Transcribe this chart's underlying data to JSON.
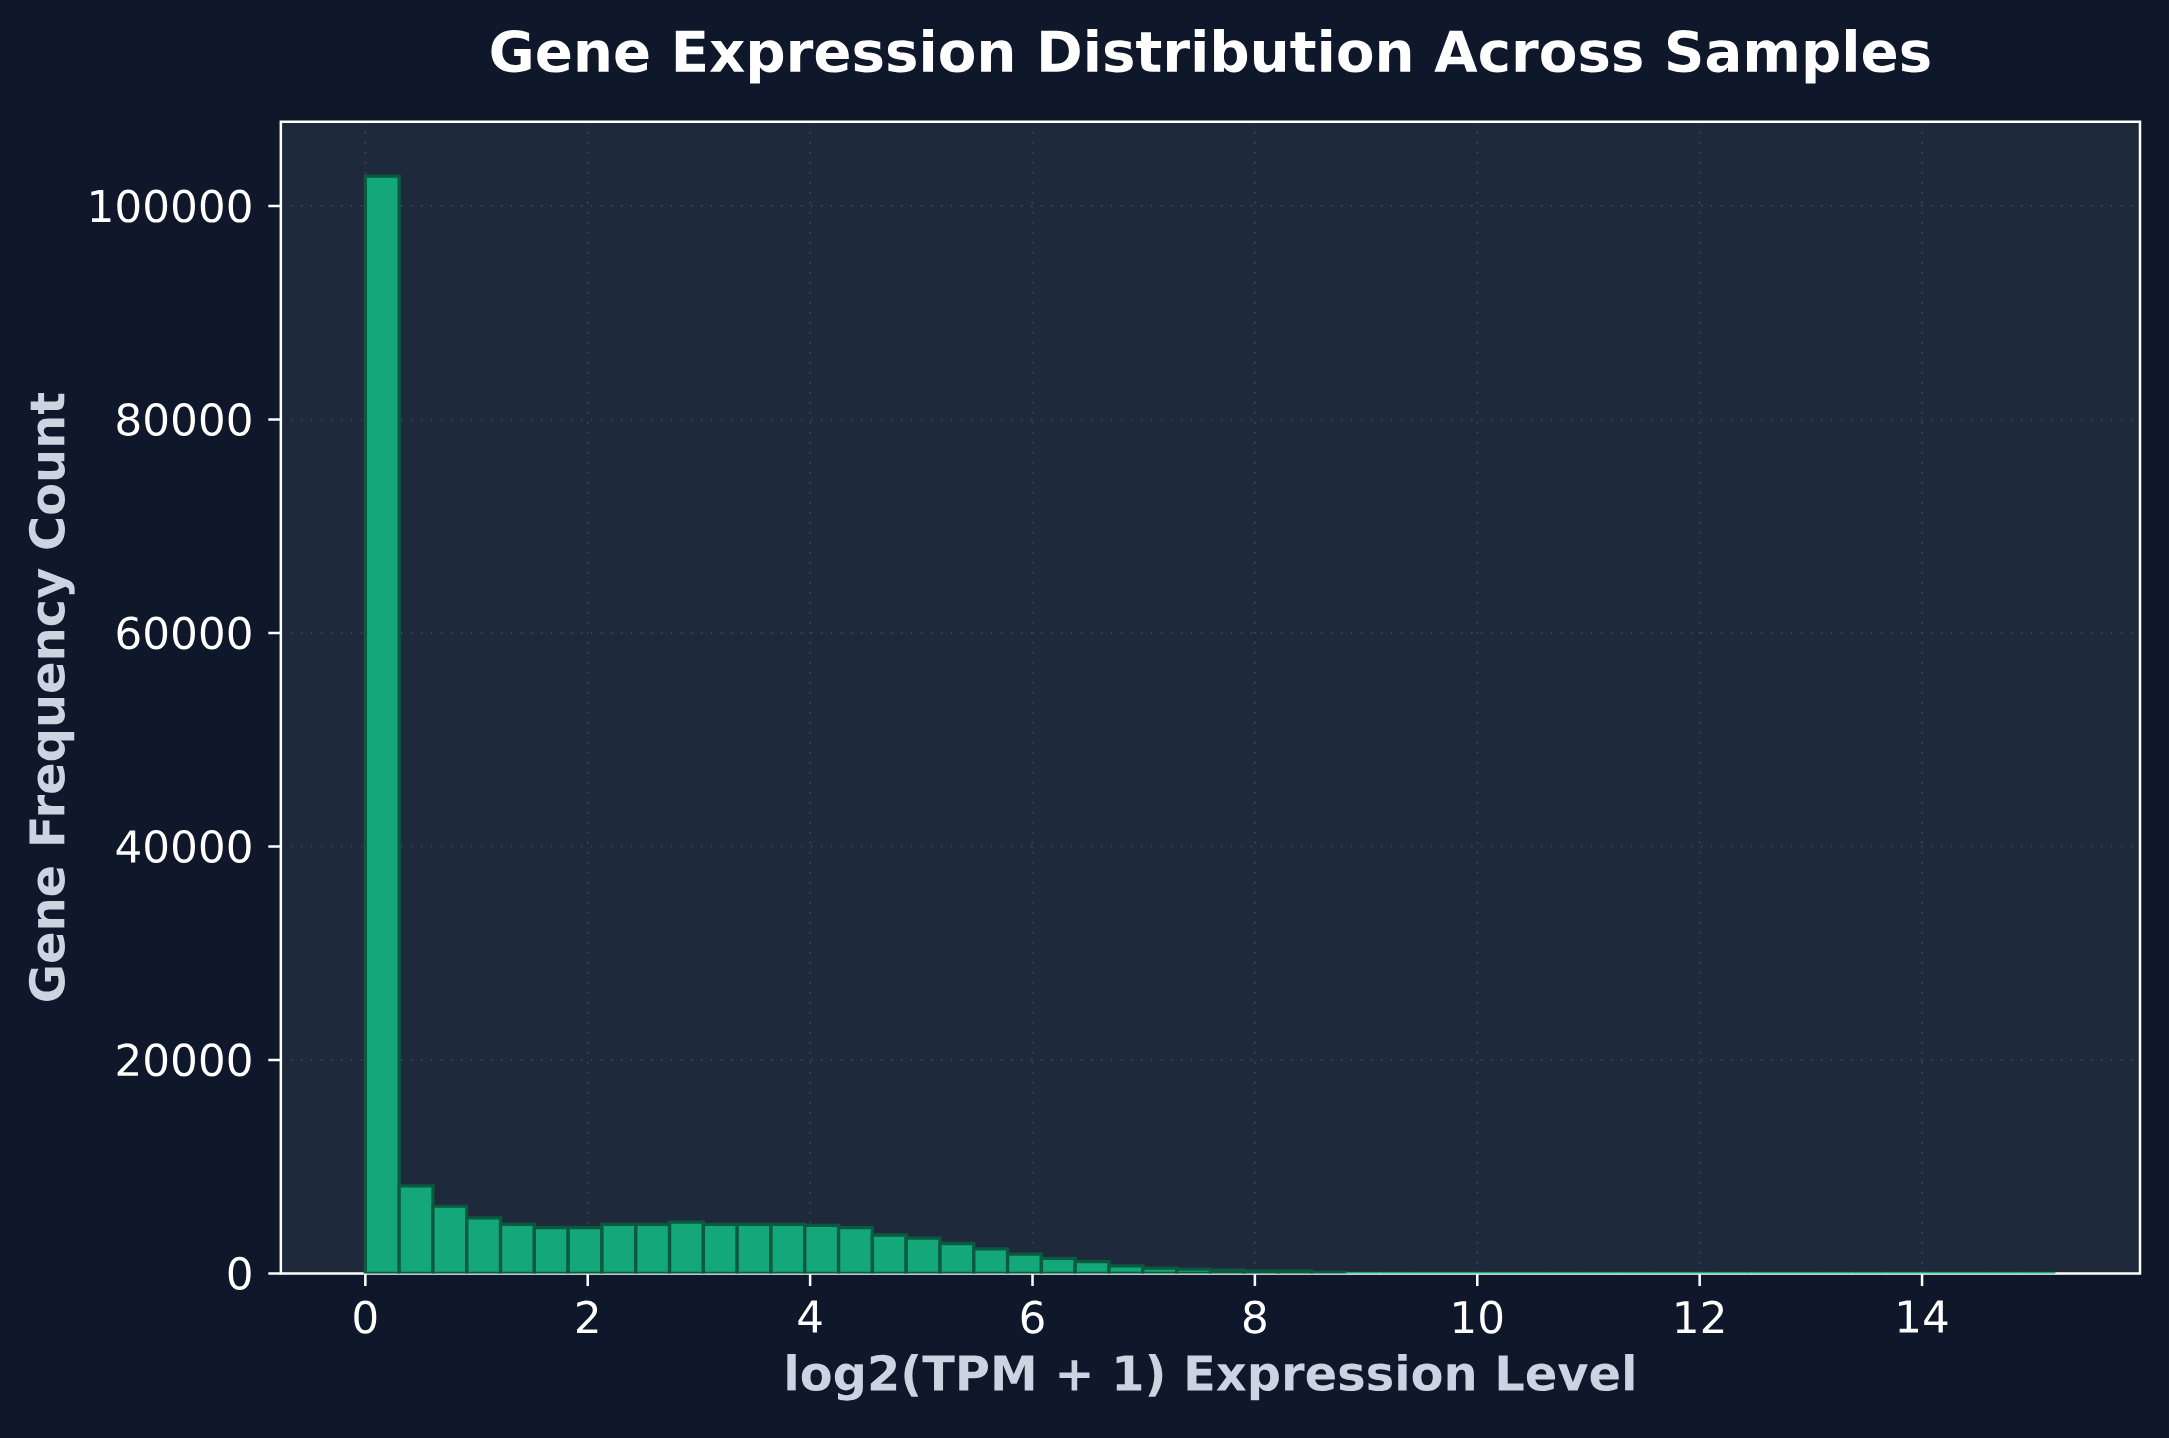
{
  "chart_data": {
    "type": "histogram",
    "title": "Gene Expression Distribution Across Samples",
    "xlabel": "log2(TPM + 1) Expression Level",
    "ylabel": "Gene Frequency Count",
    "color": "#14a77a",
    "bins": [
      0,
      0.304,
      0.608,
      0.912,
      1.216,
      1.52,
      1.824,
      2.128,
      2.432,
      2.736,
      3.04,
      3.344,
      3.648,
      3.952,
      4.256,
      4.56,
      4.864,
      5.168,
      5.472,
      5.776,
      6.08,
      6.384,
      6.688,
      6.992,
      7.296,
      7.6,
      7.904,
      8.208,
      8.512,
      8.816,
      9.12,
      9.424,
      9.728,
      10.032,
      10.336,
      10.64,
      10.944,
      11.248,
      11.552,
      11.856,
      12.16,
      12.464,
      12.768,
      13.072,
      13.376,
      13.68,
      13.984,
      14.288,
      14.592,
      14.896,
      15.2
    ],
    "values": [
      102800,
      8200,
      6300,
      5200,
      4600,
      4300,
      4300,
      4600,
      4600,
      4800,
      4600,
      4600,
      4600,
      4500,
      4300,
      3600,
      3300,
      2800,
      2300,
      1800,
      1400,
      1100,
      700,
      500,
      400,
      300,
      200,
      200,
      100,
      0,
      0,
      0,
      0,
      0,
      0,
      0,
      0,
      0,
      0,
      0,
      0,
      0,
      0,
      0,
      0,
      0,
      0,
      0,
      0,
      0
    ],
    "xlim": [
      -0.76,
      15.96
    ],
    "ylim": [
      0,
      107900
    ],
    "xticks": [
      0,
      2,
      4,
      6,
      8,
      10,
      12,
      14
    ],
    "yticks": [
      0,
      20000,
      40000,
      60000,
      80000,
      100000
    ],
    "grid": true
  }
}
